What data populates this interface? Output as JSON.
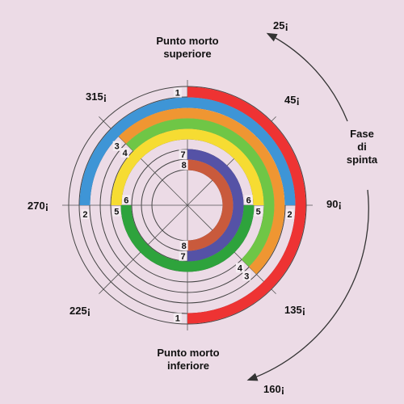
{
  "labels": {
    "top_line1": "Punto morto",
    "top_line2": "superiore",
    "bottom_line1": "Punto morto",
    "bottom_line2": "inferiore",
    "phase_line1": "Fase",
    "phase_line2": "di",
    "phase_line3": "spinta"
  },
  "angles": [
    {
      "id": "a25",
      "text": "25¡"
    },
    {
      "id": "a45",
      "text": "45¡"
    },
    {
      "id": "a90",
      "text": "90¡"
    },
    {
      "id": "a135",
      "text": "135¡"
    },
    {
      "id": "a160",
      "text": "160¡"
    },
    {
      "id": "a225",
      "text": "225¡"
    },
    {
      "id": "a270",
      "text": "270¡"
    },
    {
      "id": "a315",
      "text": "315¡"
    }
  ],
  "colors": {
    "background": "#ecdbe6",
    "line": "#444444",
    "cyl1": "#ee3333",
    "cyl2": "#3e95d6",
    "cyl3": "#ef9632",
    "cyl4": "#6fc646",
    "cyl5": "#f6dc32",
    "cyl6": "#2ea33c",
    "cyl7": "#5552a6",
    "cyl8": "#c95a3c"
  },
  "cylinders": [
    {
      "num": "1",
      "start_deg": 0,
      "end_deg": 180
    },
    {
      "num": "2",
      "start_deg": 270,
      "end_deg": 450
    },
    {
      "num": "3",
      "start_deg": 315,
      "end_deg": 495
    },
    {
      "num": "4",
      "start_deg": 315,
      "end_deg": 495
    },
    {
      "num": "5",
      "start_deg": 270,
      "end_deg": 450
    },
    {
      "num": "6",
      "start_deg": 90,
      "end_deg": 270
    },
    {
      "num": "7",
      "start_deg": 0,
      "end_deg": 180
    },
    {
      "num": "8",
      "start_deg": 0,
      "end_deg": 180
    }
  ]
}
